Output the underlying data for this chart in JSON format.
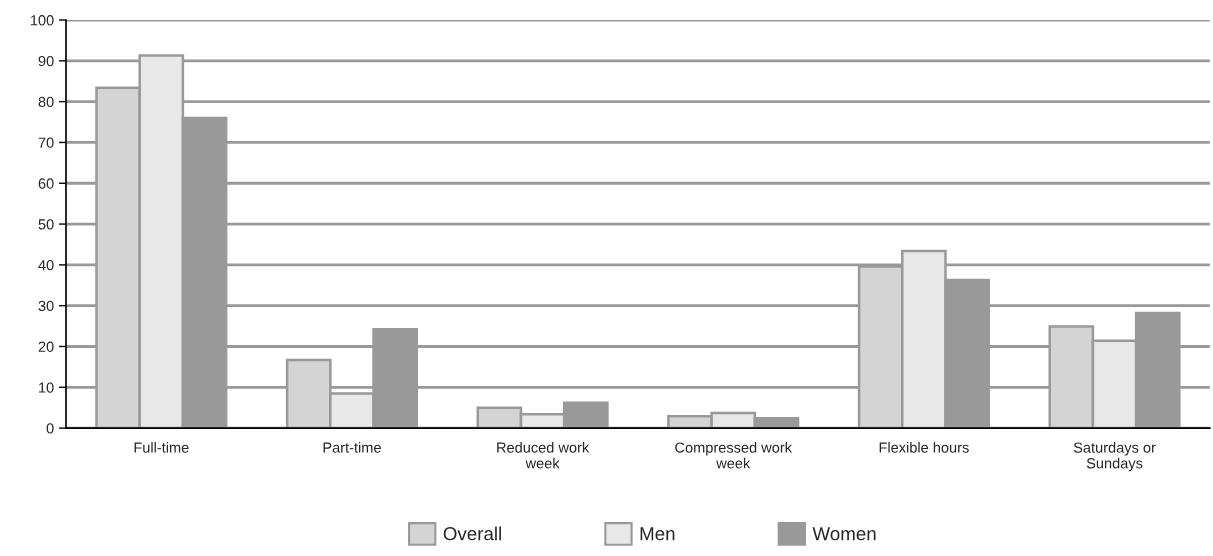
{
  "chart_data": {
    "type": "bar",
    "categories": [
      "Full-time",
      "Part-time",
      "Reduced work\nweek",
      "Compressed work\nweek",
      "Flexible hours",
      "Saturdays or\nSundays"
    ],
    "series": [
      {
        "name": "Overall",
        "color": "#d4d4d4",
        "values": [
          83.4,
          16.7,
          5.0,
          2.9,
          39.6,
          24.9
        ]
      },
      {
        "name": "Men",
        "color": "#e8e8e8",
        "values": [
          91.3,
          8.5,
          3.4,
          3.7,
          43.4,
          21.4
        ]
      },
      {
        "name": "Women",
        "color": "#999999",
        "values": [
          76.0,
          24.2,
          6.2,
          2.4,
          36.3,
          28.2
        ]
      }
    ],
    "ylim": [
      0,
      100
    ],
    "yticks": [
      0,
      10,
      20,
      30,
      40,
      50,
      60,
      70,
      80,
      90,
      100
    ],
    "grid": "y",
    "legend": "bottom"
  }
}
